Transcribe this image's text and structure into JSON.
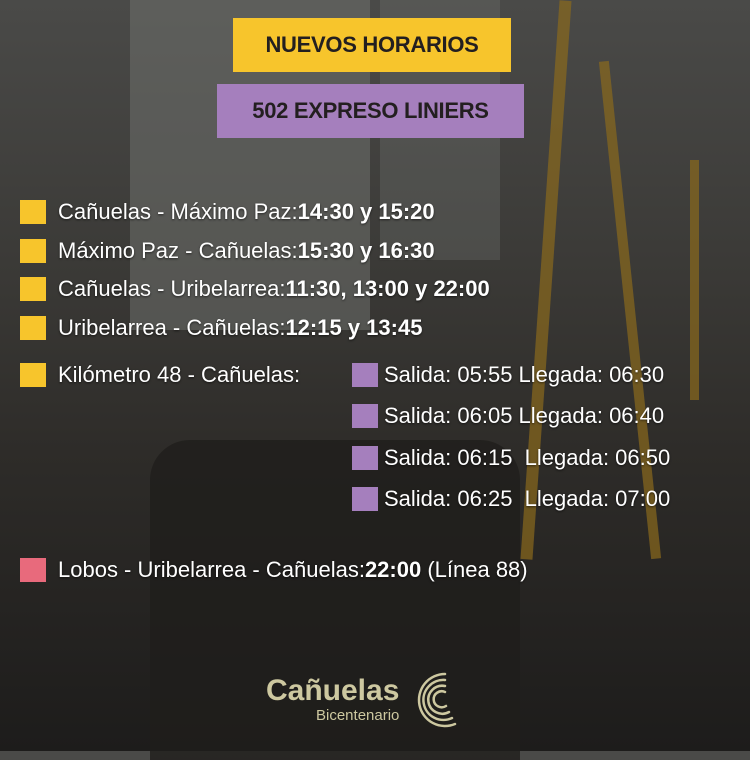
{
  "colors": {
    "yellow": "#f7c52c",
    "purple": "#a57fbd",
    "pink": "#e86a7c",
    "logo": "#cdc8a0"
  },
  "header": {
    "title": "NUEVOS HORARIOS",
    "subtitle": "502 EXPRESO LINIERS"
  },
  "routes": [
    {
      "route": "Cañuelas - Máximo Paz: ",
      "times": "14:30 y 15:20"
    },
    {
      "route": "Máximo Paz - Cañuelas: ",
      "times": "15:30 y 16:30"
    },
    {
      "route": "Cañuelas - Uribelarrea: ",
      "times": "11:30, 13:00 y 22:00"
    },
    {
      "route": "Uribelarrea - Cañuelas: ",
      "times": "12:15 y 13:45"
    }
  ],
  "km48": {
    "route": "Kilómetro 48 - Cañuelas:",
    "schedule": [
      "Salida: 05:55 Llegada: 06:30",
      "Salida: 06:05 Llegada: 06:40",
      "Salida: 06:15  Llegada: 06:50",
      "Salida: 06:25  Llegada: 07:00"
    ]
  },
  "lobos": {
    "route": "Lobos - Uribelarrea - Cañuelas: ",
    "time": "22:00",
    "note": " (Línea 88)"
  },
  "logo": {
    "name": "Cañuelas",
    "tagline": "Bicentenario",
    "icon": "concentric-arcs-icon"
  }
}
